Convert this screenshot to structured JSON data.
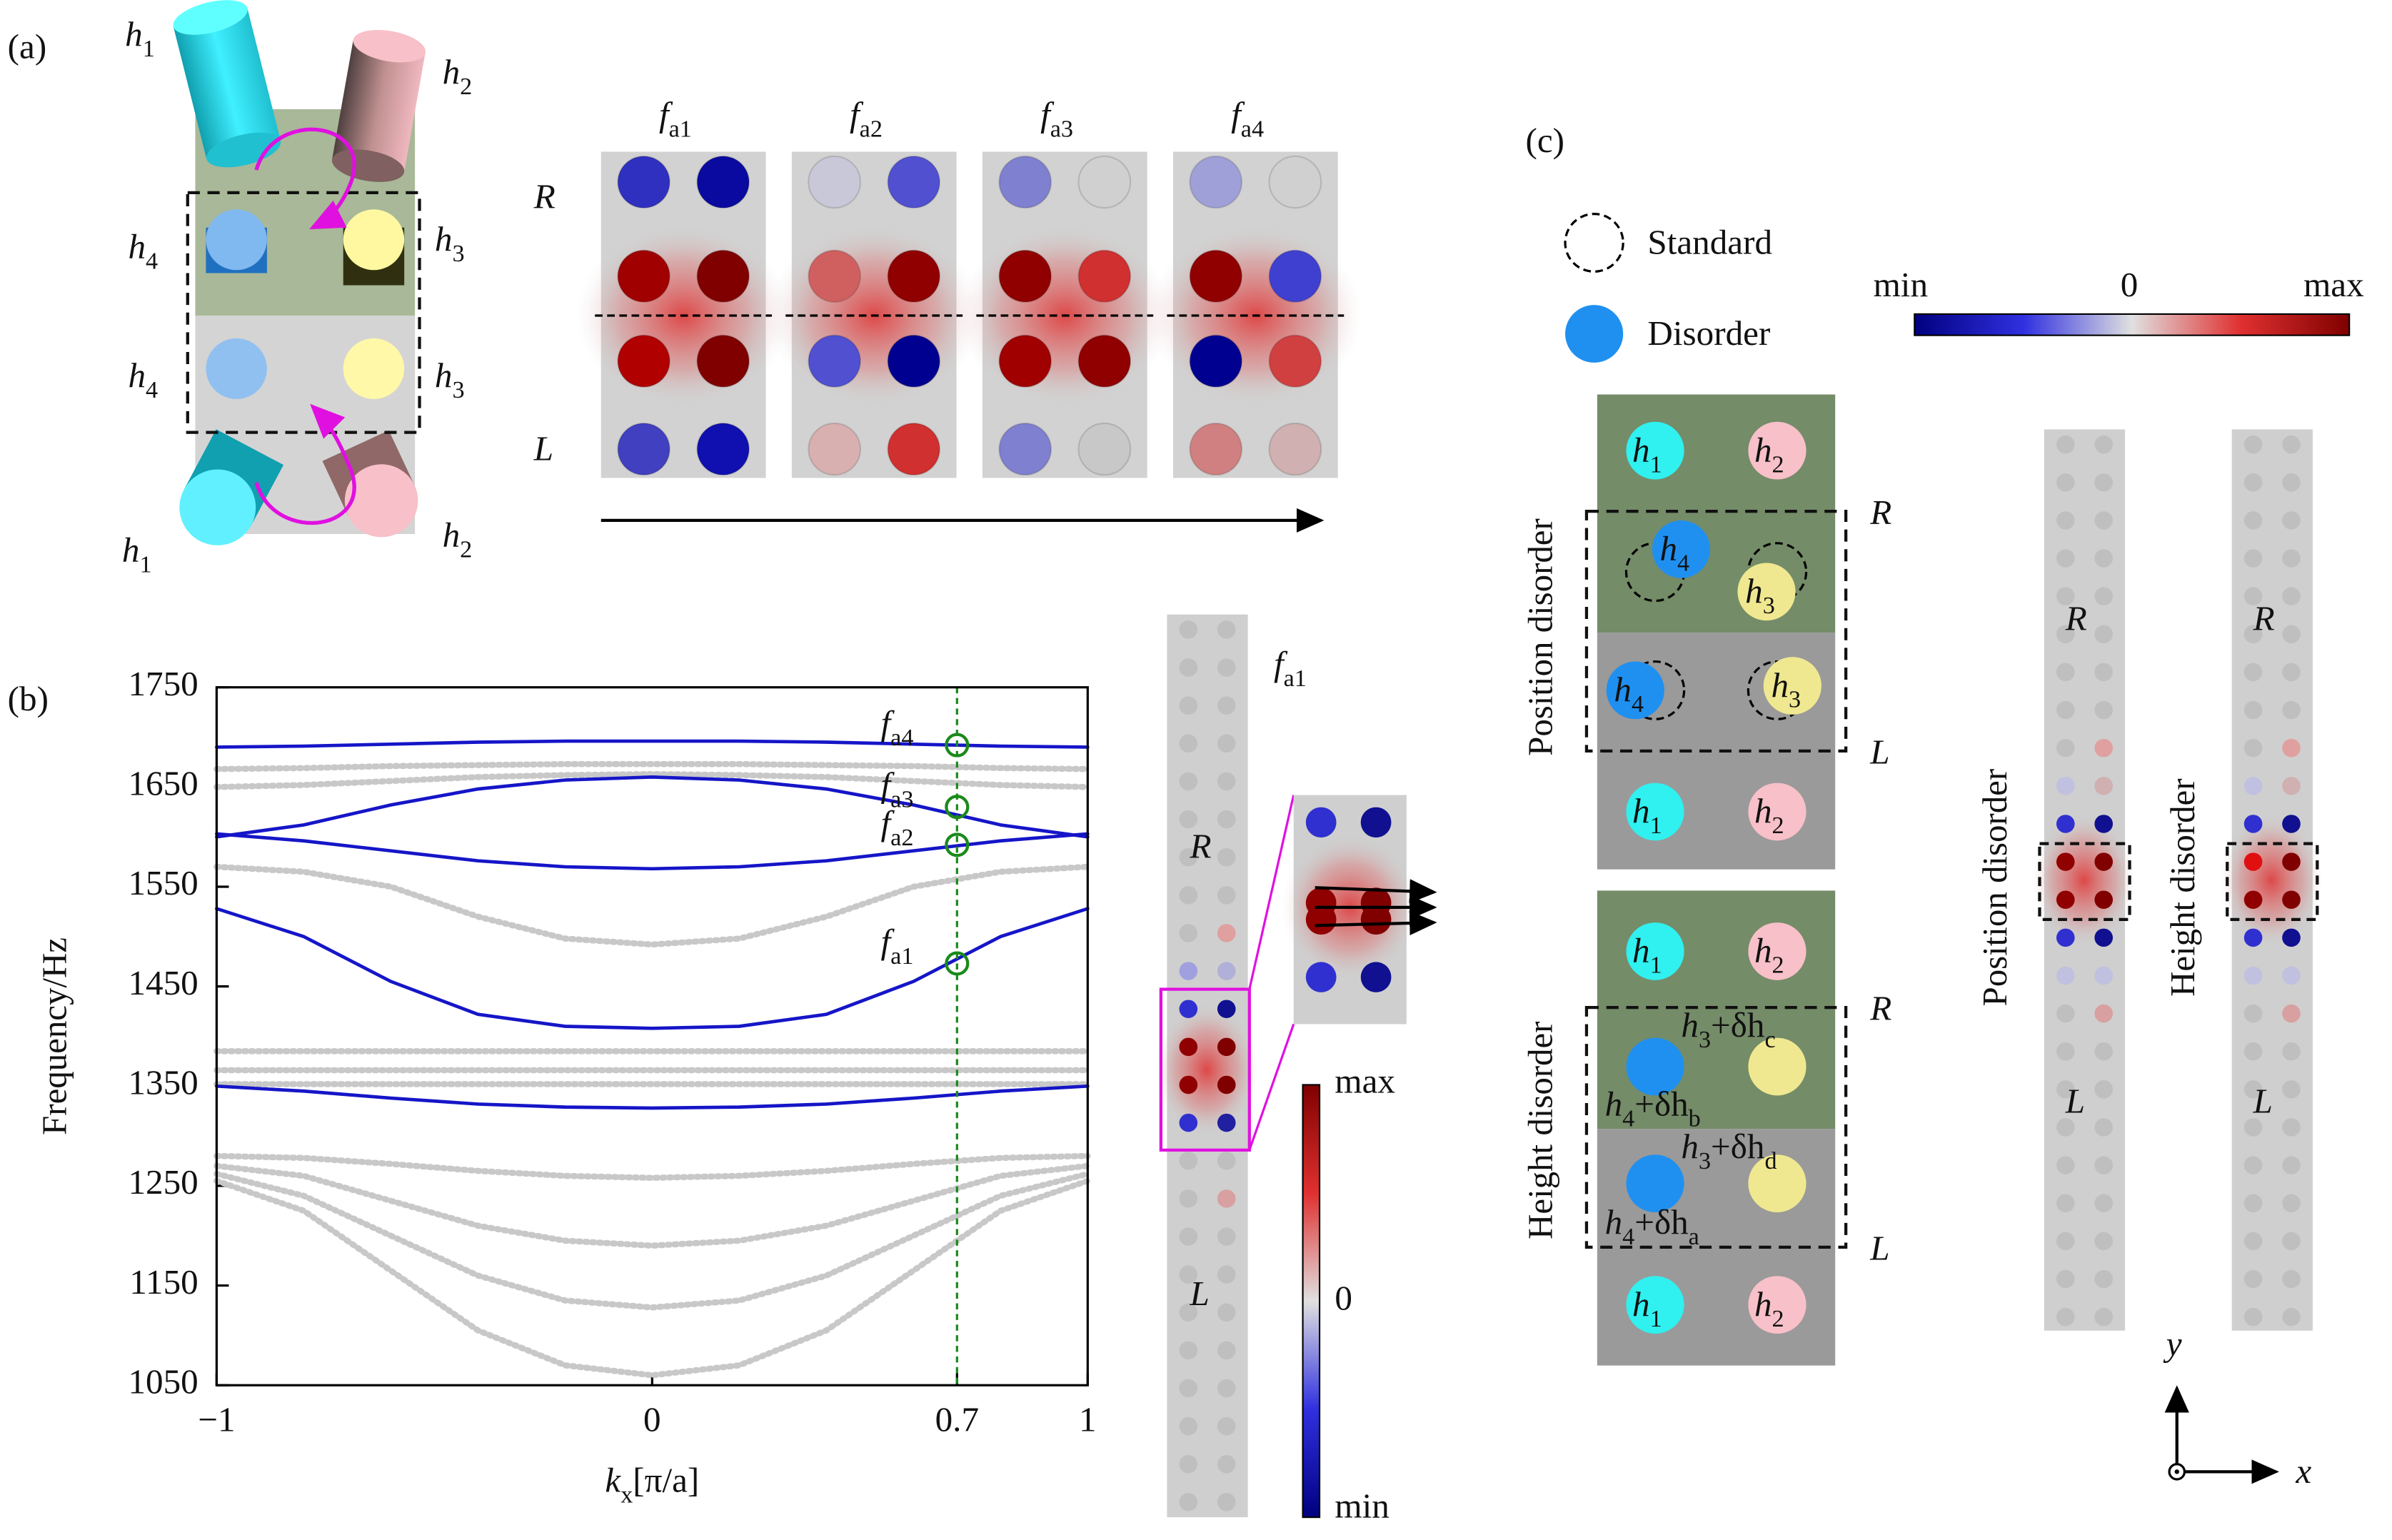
{
  "panel_labels": [
    "(a)",
    "(b)",
    "(c)"
  ],
  "panel_a": {
    "height_labels": [
      [
        "h",
        "1"
      ],
      [
        "h",
        "2"
      ],
      [
        "h",
        "4"
      ],
      [
        "h",
        "3"
      ],
      [
        "h",
        "4"
      ],
      [
        "h",
        "3"
      ],
      [
        "h",
        "1"
      ],
      [
        "h",
        "2"
      ]
    ],
    "mode_labels": [
      [
        "f",
        "a1"
      ],
      [
        "f",
        "a2"
      ],
      [
        "f",
        "a3"
      ],
      [
        "f",
        "a4"
      ]
    ],
    "R": "R",
    "L": "L",
    "maps": [
      [
        "#3030c0",
        "#0a0aa0",
        "#a00000",
        "#800000",
        "#b00000",
        "#800000",
        "#4040c0",
        "#1010b0"
      ],
      [
        "#c8c8d8",
        "#5050d0",
        "#d06060",
        "#900000",
        "#5050d0",
        "#000090",
        "#d8b0b0",
        "#d03030"
      ],
      [
        "#8080d0",
        "#d0d0d0",
        "#900000",
        "#d03030",
        "#a00000",
        "#900000",
        "#8080d0",
        "#c8c8c8"
      ],
      [
        "#a0a0d8",
        "#d0d0d0",
        "#900000",
        "#4040d0",
        "#000090",
        "#d04040",
        "#d08080",
        "#d0b0b0"
      ]
    ]
  },
  "chart_data": {
    "type": "line",
    "ylabel": "Frequency/Hz",
    "xlabel": [
      "k",
      "x",
      "[π/a]"
    ],
    "x": [
      -1,
      -0.8,
      -0.6,
      -0.4,
      -0.2,
      0,
      0.2,
      0.4,
      0.6,
      0.8,
      1
    ],
    "xlim": [
      -1,
      1
    ],
    "ylim": [
      1050,
      1750
    ],
    "xticks": [
      {
        "value": -1,
        "label": "−1"
      },
      0,
      0.7,
      1
    ],
    "yticks": [
      1050,
      1150,
      1250,
      1350,
      1450,
      1550,
      1650,
      1750
    ],
    "vline": 0.7,
    "vline_color": "#1a8a1a",
    "series": [
      {
        "color": "#c8c8c8",
        "style": "dotted",
        "values": [
          1650,
          1652,
          1656,
          1660,
          1662,
          1663,
          1662,
          1660,
          1656,
          1652,
          1650
        ]
      },
      {
        "color": "#c8c8c8",
        "style": "dotted",
        "values": [
          1668,
          1669,
          1671,
          1672,
          1673,
          1673,
          1673,
          1672,
          1671,
          1669,
          1668
        ]
      },
      {
        "color": "#c8c8c8",
        "style": "dotted",
        "values": [
          1570,
          1565,
          1550,
          1520,
          1498,
          1492,
          1498,
          1520,
          1550,
          1565,
          1570
        ]
      },
      {
        "color": "#c8c8c8",
        "style": "dotted",
        "values": [
          1385,
          1385,
          1385,
          1385,
          1385,
          1385,
          1385,
          1385,
          1385,
          1385,
          1385
        ]
      },
      {
        "color": "#c8c8c8",
        "style": "dotted",
        "values": [
          1366,
          1366,
          1366,
          1366,
          1366,
          1366,
          1366,
          1366,
          1366,
          1366,
          1366
        ]
      },
      {
        "color": "#c8c8c8",
        "style": "dotted",
        "values": [
          1352,
          1352,
          1352,
          1352,
          1352,
          1352,
          1352,
          1352,
          1352,
          1352,
          1352
        ]
      },
      {
        "color": "#c8c8c8",
        "style": "dotted",
        "values": [
          1280,
          1278,
          1272,
          1265,
          1260,
          1258,
          1260,
          1265,
          1272,
          1278,
          1280
        ]
      },
      {
        "color": "#c8c8c8",
        "style": "dotted",
        "values": [
          1270,
          1260,
          1235,
          1210,
          1195,
          1190,
          1195,
          1210,
          1235,
          1260,
          1270
        ]
      },
      {
        "color": "#c8c8c8",
        "style": "dotted",
        "values": [
          1262,
          1240,
          1200,
          1160,
          1135,
          1128,
          1135,
          1160,
          1200,
          1240,
          1262
        ]
      },
      {
        "color": "#c8c8c8",
        "style": "dotted",
        "values": [
          1255,
          1225,
          1165,
          1105,
          1070,
          1060,
          1070,
          1105,
          1165,
          1225,
          1255
        ]
      },
      {
        "color": "#1515c8",
        "style": "solid",
        "values": [
          1690,
          1691,
          1693,
          1695,
          1696,
          1696,
          1696,
          1695,
          1693,
          1691,
          1690
        ]
      },
      {
        "color": "#1515c8",
        "style": "solid",
        "values": [
          1600,
          1612,
          1632,
          1648,
          1657,
          1660,
          1657,
          1648,
          1632,
          1612,
          1600
        ]
      },
      {
        "color": "#1515c8",
        "style": "solid",
        "values": [
          1603,
          1596,
          1586,
          1576,
          1570,
          1568,
          1570,
          1576,
          1586,
          1596,
          1603
        ]
      },
      {
        "color": "#1515c8",
        "style": "solid",
        "values": [
          1528,
          1500,
          1455,
          1422,
          1410,
          1408,
          1410,
          1422,
          1455,
          1500,
          1528
        ]
      },
      {
        "color": "#1515c8",
        "style": "solid",
        "values": [
          1350,
          1345,
          1338,
          1332,
          1329,
          1328,
          1329,
          1332,
          1338,
          1345,
          1350
        ]
      }
    ],
    "markers": [
      {
        "x": 0.7,
        "y": 1692,
        "label": [
          "f",
          "a4"
        ]
      },
      {
        "x": 0.7,
        "y": 1630,
        "label": [
          "f",
          "a3"
        ]
      },
      {
        "x": 0.7,
        "y": 1592,
        "label": [
          "f",
          "a2"
        ]
      },
      {
        "x": 0.7,
        "y": 1473,
        "label": [
          "f",
          "a1"
        ]
      }
    ]
  },
  "strip_b": {
    "mode_label": [
      "f",
      "a1"
    ],
    "R": "R",
    "L": "L",
    "colorbar": [
      "max",
      "0",
      "min"
    ]
  },
  "panel_c": {
    "legend": [
      "Standard",
      "Disorder"
    ],
    "colorbar": [
      "min",
      "0",
      "max"
    ],
    "position_title": "Position disorder",
    "height_title": "Height disorder",
    "position_labels": [
      [
        "h",
        "1"
      ],
      [
        "h",
        "2"
      ],
      [
        "h",
        "4"
      ],
      [
        "h",
        "3"
      ],
      [
        "h",
        "4"
      ],
      [
        "h",
        "3"
      ],
      [
        "h",
        "1"
      ],
      [
        "h",
        "2"
      ]
    ],
    "height_labels": [
      [
        "h",
        "1"
      ],
      [
        "h",
        "2"
      ],
      [
        "h",
        "3",
        "+δh",
        "c"
      ],
      [
        "h",
        "4",
        "+δh",
        "b"
      ],
      [
        "h",
        "3",
        "+δh",
        "d"
      ],
      [
        "h",
        "4",
        "+δh",
        "a"
      ],
      [
        "h",
        "1"
      ],
      [
        "h",
        "2"
      ]
    ],
    "R": "R",
    "L": "L",
    "strip_titles": [
      "Position disorder",
      "Height disorder"
    ],
    "axes": [
      "y",
      "x"
    ]
  }
}
